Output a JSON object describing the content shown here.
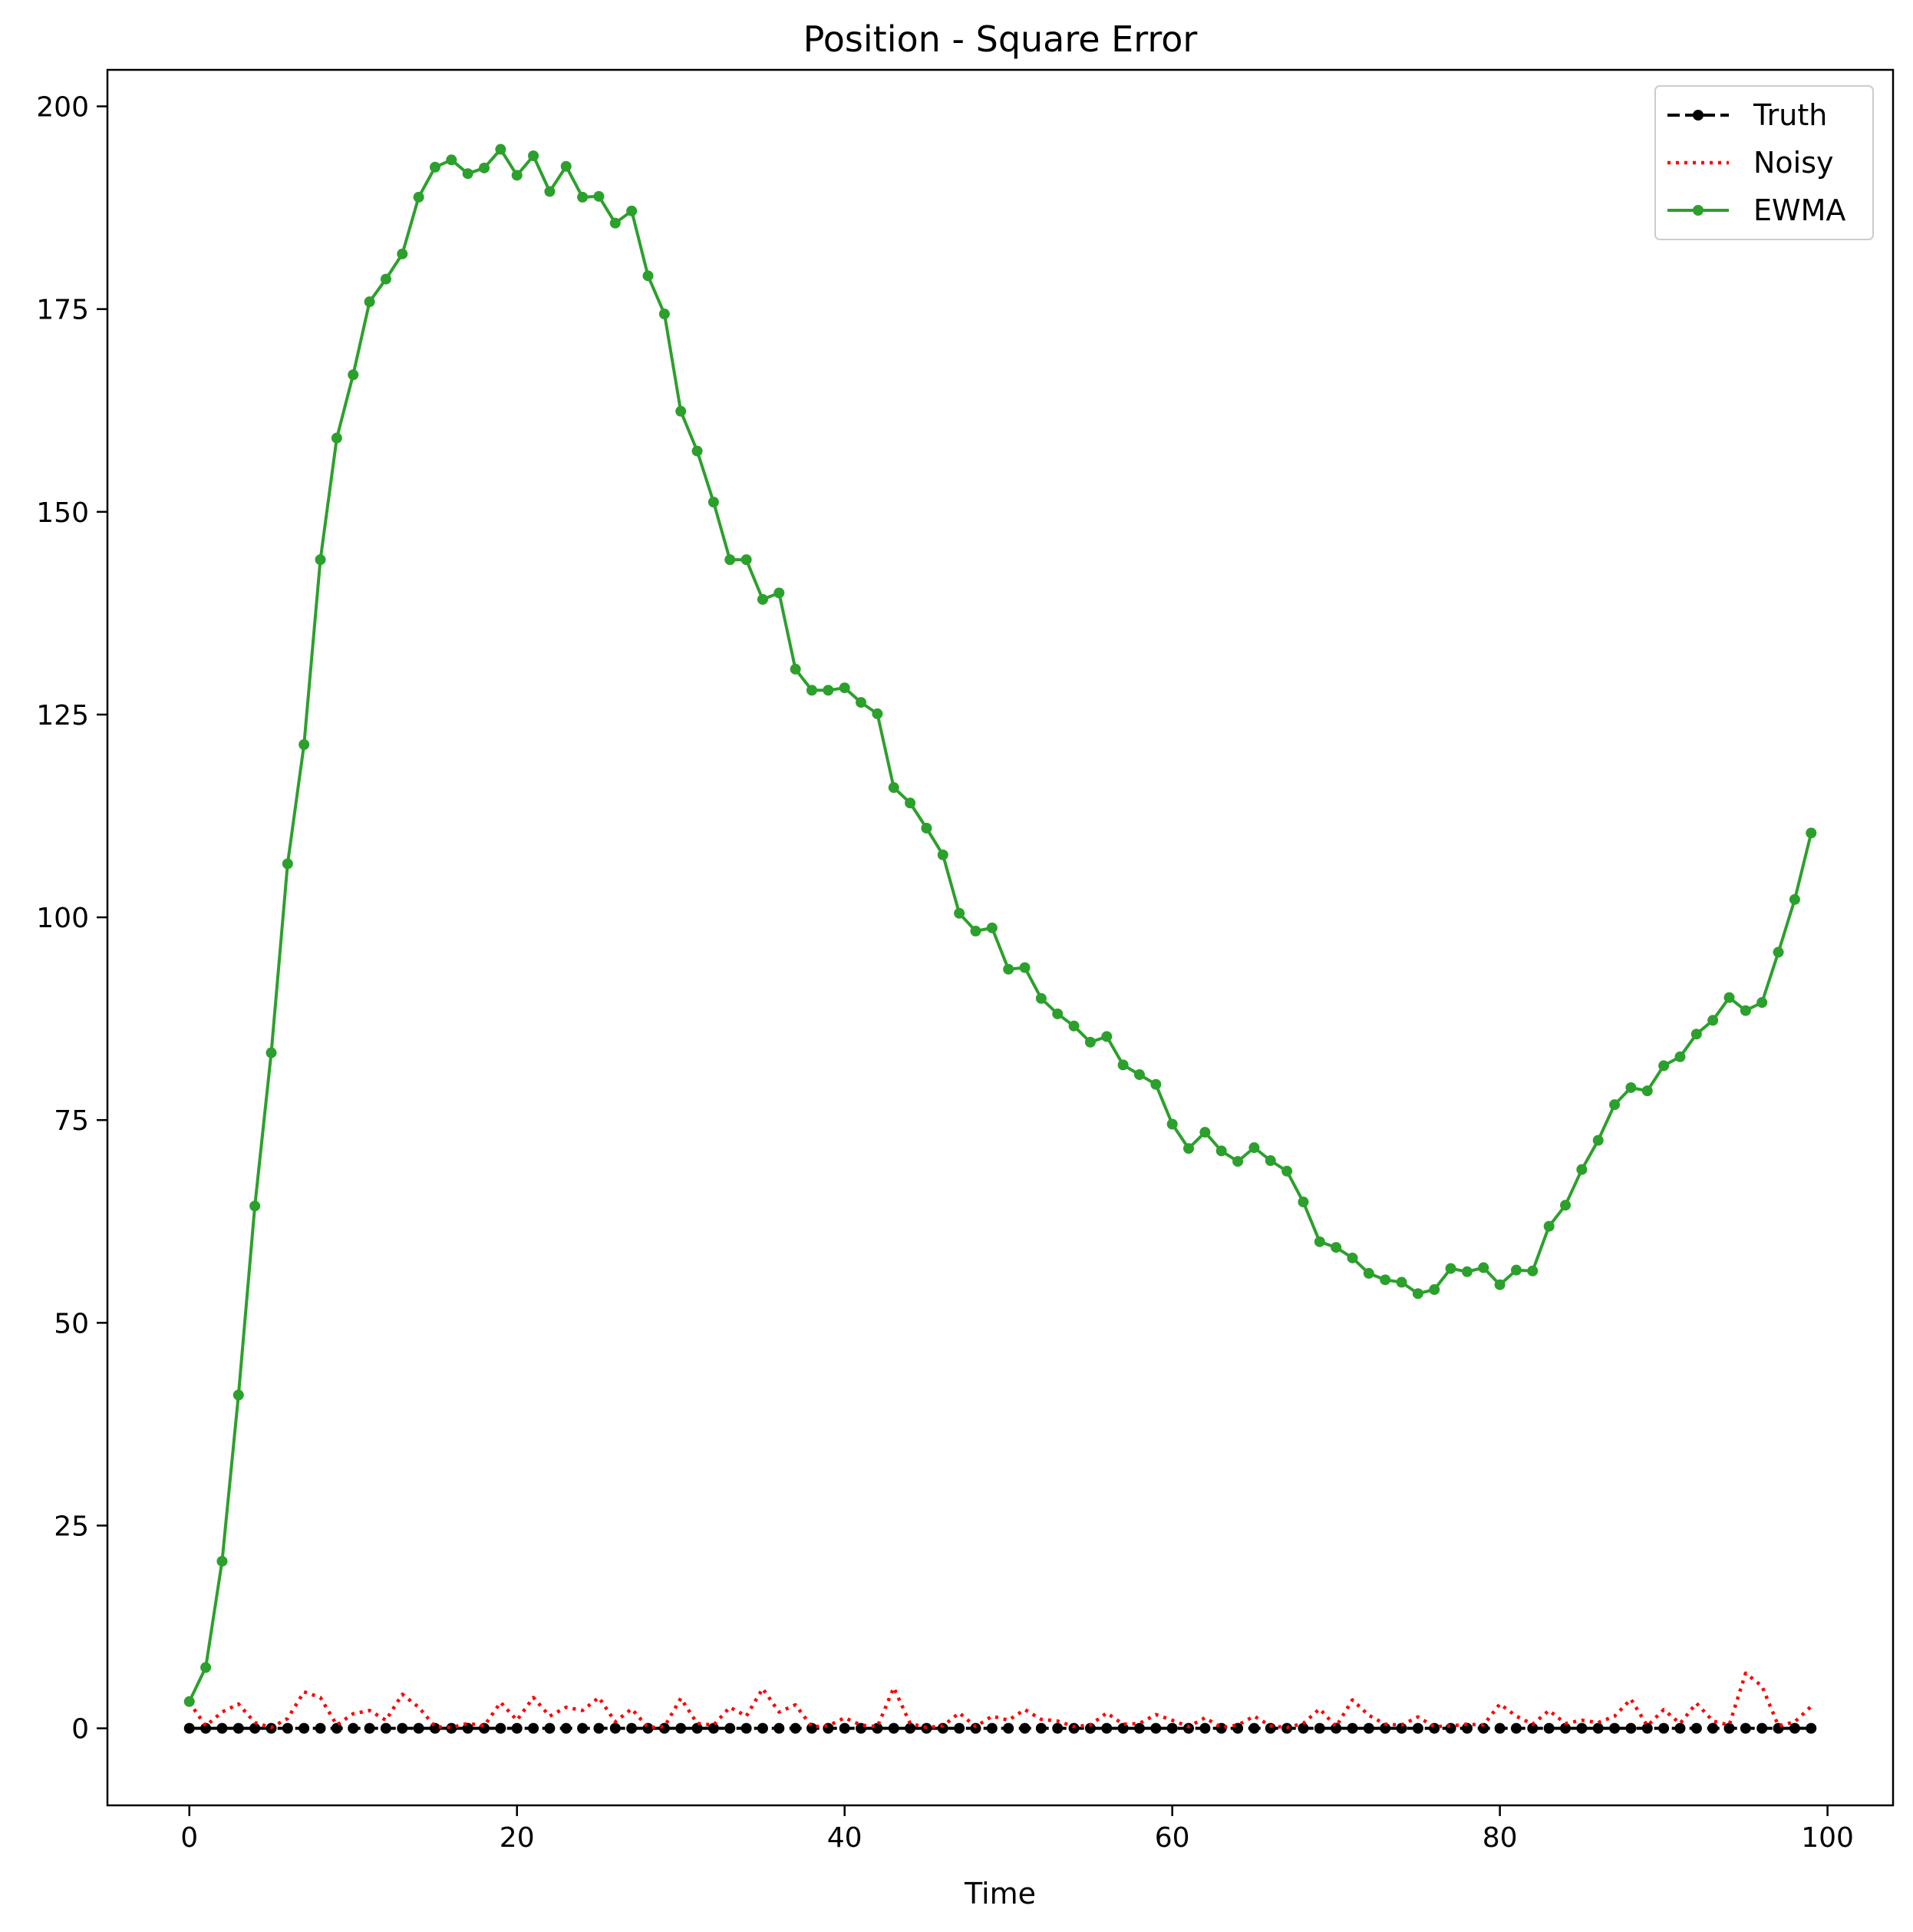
{
  "chart_data": {
    "type": "line",
    "title": "Position - Square Error",
    "xlabel": "Time",
    "ylabel": "",
    "xlim": [
      -5,
      104
    ],
    "ylim": [
      -9.5,
      204.5
    ],
    "xticks": [
      0,
      20,
      40,
      60,
      80,
      100
    ],
    "yticks": [
      0,
      25,
      50,
      75,
      100,
      125,
      150,
      175,
      200
    ],
    "grid": false,
    "legend_position": "top-right",
    "x": [
      0,
      1,
      2,
      3,
      4,
      5,
      6,
      7,
      8,
      9,
      10,
      11,
      12,
      13,
      14,
      15,
      16,
      17,
      18,
      19,
      20,
      21,
      22,
      23,
      24,
      25,
      26,
      27,
      28,
      29,
      30,
      31,
      32,
      33,
      34,
      35,
      36,
      37,
      38,
      39,
      40,
      41,
      42,
      43,
      44,
      45,
      46,
      47,
      48,
      49,
      50,
      51,
      52,
      53,
      54,
      55,
      56,
      57,
      58,
      59,
      60,
      61,
      62,
      63,
      64,
      65,
      66,
      67,
      68,
      69,
      70,
      71,
      72,
      73,
      74,
      75,
      76,
      77,
      78,
      79,
      80,
      81,
      82,
      83,
      84,
      85,
      86,
      87,
      88,
      89,
      90,
      91,
      92,
      93,
      94,
      95,
      96,
      97,
      98,
      99
    ],
    "series": [
      {
        "name": "Truth",
        "color": "#000000",
        "style": "dashed-marker",
        "values": [
          0,
          0,
          0,
          0,
          0,
          0,
          0,
          0,
          0,
          0,
          0,
          0,
          0,
          0,
          0,
          0,
          0,
          0,
          0,
          0,
          0,
          0,
          0,
          0,
          0,
          0,
          0,
          0,
          0,
          0,
          0,
          0,
          0,
          0,
          0,
          0,
          0,
          0,
          0,
          0,
          0,
          0,
          0,
          0,
          0,
          0,
          0,
          0,
          0,
          0,
          0,
          0,
          0,
          0,
          0,
          0,
          0,
          0,
          0,
          0,
          0,
          0,
          0,
          0,
          0,
          0,
          0,
          0,
          0,
          0,
          0,
          0,
          0,
          0,
          0,
          0,
          0,
          0,
          0,
          0,
          0,
          0,
          0,
          0,
          0,
          0,
          0,
          0,
          0,
          0,
          0,
          0,
          0,
          0,
          0,
          0,
          0,
          0,
          0,
          0
        ]
      },
      {
        "name": "Noisy",
        "color": "#ff0000",
        "style": "dotted",
        "values": [
          3.2,
          0.3,
          2.0,
          3.0,
          0.7,
          0.1,
          1.2,
          4.5,
          3.8,
          0.4,
          1.8,
          2.2,
          1.0,
          4.2,
          2.6,
          0.2,
          0.1,
          0.6,
          0.3,
          3.2,
          1.0,
          3.8,
          1.5,
          2.6,
          2.2,
          3.8,
          0.8,
          2.4,
          0.1,
          0.2,
          3.7,
          0.6,
          0.4,
          2.6,
          1.5,
          4.9,
          2.0,
          2.9,
          0.2,
          0.3,
          1.3,
          0.4,
          0.2,
          5.0,
          0.6,
          0.1,
          0.3,
          1.9,
          0.2,
          1.5,
          1.0,
          2.3,
          1.1,
          0.9,
          0.2,
          0.4,
          1.9,
          0.5,
          0.6,
          1.7,
          1.0,
          0.2,
          1.3,
          0.1,
          0.4,
          1.5,
          0.3,
          0.1,
          0.6,
          2.4,
          0.2,
          3.5,
          1.6,
          0.5,
          0.4,
          1.4,
          0.2,
          0.3,
          0.5,
          0.4,
          3.0,
          1.5,
          0.5,
          2.2,
          0.6,
          1.0,
          0.7,
          1.5,
          3.6,
          0.3,
          2.3,
          0.6,
          3.1,
          0.9,
          0.4,
          6.8,
          5.2,
          0.3,
          0.8,
          2.7
        ]
      },
      {
        "name": "EWMA",
        "color": "#2ca02c",
        "style": "solid-marker",
        "values": [
          3.3,
          7.5,
          20.6,
          41.1,
          64.4,
          83.3,
          106.6,
          121.3,
          144.1,
          159.1,
          166.9,
          175.9,
          178.7,
          181.8,
          188.8,
          192.5,
          193.4,
          191.7,
          192.4,
          194.7,
          191.5,
          193.9,
          189.5,
          192.6,
          188.8,
          188.9,
          185.6,
          187.1,
          179.1,
          174.4,
          162.4,
          157.5,
          151.2,
          144.1,
          144.1,
          139.2,
          140.0,
          130.6,
          128.0,
          128.0,
          128.3,
          126.5,
          125.1,
          116.0,
          114.1,
          111.0,
          107.7,
          100.5,
          98.3,
          98.7,
          93.6,
          93.8,
          90.0,
          88.1,
          86.6,
          84.6,
          85.3,
          81.8,
          80.6,
          79.4,
          74.5,
          71.5,
          73.5,
          71.2,
          69.9,
          71.6,
          70.0,
          68.7,
          64.9,
          60.0,
          59.3,
          58.0,
          56.1,
          55.3,
          55.0,
          53.6,
          54.1,
          56.7,
          56.3,
          56.8,
          54.7,
          56.5,
          56.4,
          61.9,
          64.5,
          68.9,
          72.5,
          76.9,
          79.0,
          78.6,
          81.7,
          82.8,
          85.6,
          87.3,
          90.1,
          88.5,
          89.5,
          95.7,
          102.2,
          110.4
        ]
      }
    ]
  }
}
